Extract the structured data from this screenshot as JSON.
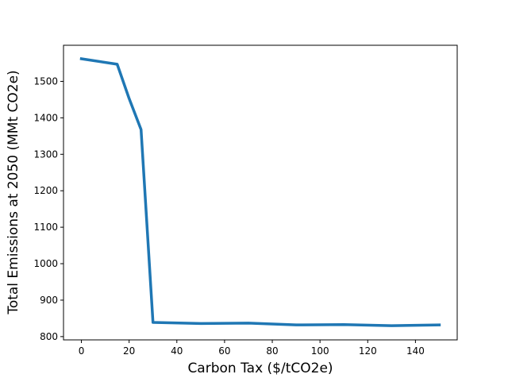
{
  "chart_data": {
    "type": "line",
    "title": "",
    "xlabel": "Carbon Tax ($/tCO2e)",
    "ylabel": "Total Emissions at 2050 (MMt CO2e)",
    "xlim": [
      -7.5,
      157.5
    ],
    "ylim": [
      791,
      1599
    ],
    "x_ticks": [
      0,
      20,
      40,
      60,
      80,
      100,
      120,
      140
    ],
    "y_ticks": [
      800,
      900,
      1000,
      1100,
      1200,
      1300,
      1400,
      1500
    ],
    "grid": false,
    "legend": "none",
    "line_color": "#1f77b4",
    "series": [
      {
        "x": [
          0,
          15,
          20,
          25,
          30,
          50,
          70,
          90,
          110,
          130,
          150
        ],
        "values": [
          1562,
          1547,
          1453,
          1368,
          839,
          836,
          837,
          832,
          833,
          830,
          832
        ]
      }
    ]
  }
}
